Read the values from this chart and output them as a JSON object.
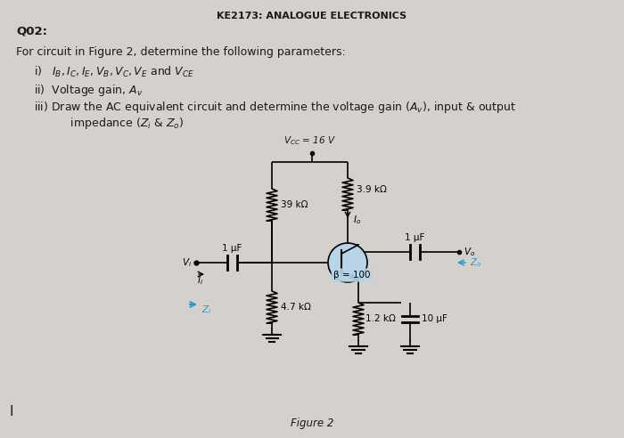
{
  "title": "KE2173: ANALOGUE ELECTRONICS",
  "q_label": "Q02:",
  "intro": "For circuit in Figure 2, determine the following parameters:",
  "item1": "i)   $I_B, I_C, I_E, V_B, V_C, V_E$ and $V_{CE}$",
  "item2": "ii)  Voltage gain, $A_v$",
  "item3a": "iii) Draw the AC equivalent circuit and determine the voltage gain $(A_v)$, input & output",
  "item3b": "      impedance $(Z_i$ & $Z_o)$",
  "vcc_label": "$V_{CC}$ = 16 V",
  "r1_label": "39 kΩ",
  "r2_label": "3.9 kΩ",
  "r3_label": "4.7 kΩ",
  "r4_label": "1.2 kΩ",
  "c1_label": "1 μF",
  "c2_label": "1 μF",
  "c3_label": "10 μF",
  "beta_label": "β = 100",
  "io_label": "$I_o$",
  "vi_label": "$V_i$",
  "vo_label": "$V_o$",
  "zi_label": "$Z_i$",
  "zo_label": "$Z_o$",
  "ii_label": "$I_i$",
  "fig_label": "Figure 2",
  "bg_color": "#d4d0cc",
  "text_color": "#1a1a1a",
  "transistor_fill": "#b8d4e8",
  "transistor_edge": "#000000",
  "highlight_color": "#3399cc",
  "beta_bg": "#b8d4e8"
}
